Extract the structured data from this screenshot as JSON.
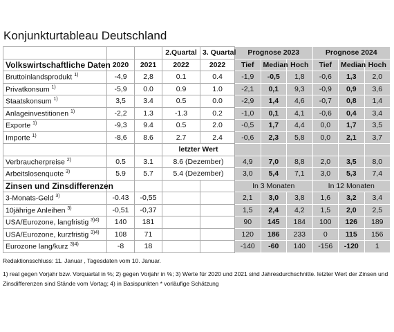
{
  "header": {
    "title": "Konjunkturtableau Deutschland"
  },
  "table": {
    "group_headers": {
      "q2": "2.Quartal",
      "q3": "3. Quartal",
      "p2023": "Prognose 2023",
      "p2024": "Prognose 2024"
    },
    "section1": "Volkswirtschaftliche Daten",
    "columns": [
      "2020",
      "2021",
      "2022",
      "2022",
      "Tief",
      "Median",
      "Hoch",
      "Tief",
      "Median",
      "Hoch"
    ],
    "rows": [
      {
        "label": "Bruttoinlandsprodukt",
        "note": "1)",
        "values": [
          "-4,9",
          "2,8",
          "0.1",
          "0.4",
          "-1,9",
          "-0,5",
          "1,8",
          "-0,6",
          "1,3",
          "2,0"
        ]
      },
      {
        "label": "Privatkonsum",
        "note": "1)",
        "values": [
          "-5,9",
          "0.0",
          "0.9",
          "1.0",
          "-2,1",
          "0,1",
          "9,3",
          "-0,9",
          "0,9",
          "3,6"
        ]
      },
      {
        "label": "Staatskonsum",
        "note": "1)",
        "values": [
          "3,5",
          "3.4",
          "0.5",
          "0.0",
          "-2,9",
          "1,4",
          "4,6",
          "-0,7",
          "0,8",
          "1,4"
        ]
      },
      {
        "label": "Anlageinvestitionen",
        "note": "1)",
        "values": [
          "-2,2",
          "1.3",
          "-1.3",
          "0.2",
          "-1,0",
          "0,1",
          "4,1",
          "-0,6",
          "0,4",
          "3,4"
        ]
      },
      {
        "label": "Exporte",
        "note": "1)",
        "values": [
          "-9,3",
          "9.4",
          "0.5",
          "2.0",
          "-0,5",
          "1,7",
          "4,4",
          "0,0",
          "1,7",
          "3,5"
        ]
      },
      {
        "label": "Importe",
        "note": "1)",
        "values": [
          "-8,6",
          "8.6",
          "2.7",
          "2.4",
          "-0,6",
          "2,3",
          "5,8",
          "0,0",
          "2,1",
          "3,7"
        ]
      }
    ],
    "last_value_label": "letzter Wert",
    "rows2": [
      {
        "label": "Verbraucherpreise",
        "note": "2)",
        "values": [
          "0.5",
          "3.1",
          "8.6 (Dezember)",
          "4,9",
          "7,0",
          "8,8",
          "2,0",
          "3,5",
          "8,0"
        ]
      },
      {
        "label": "Arbeitslosenquote",
        "note": "3)",
        "values": [
          "5.9",
          "5.7",
          "5.4 (Dezember)",
          "3,0",
          "5,4",
          "7,1",
          "3,0",
          "5,3",
          "7,4"
        ]
      }
    ],
    "section2": "Zinsen und Zinsdifferenzen",
    "horizon_3": "In 3 Monaten",
    "horizon_12": "In 12 Monaten",
    "rows3": [
      {
        "label": "3-Monats-Geld",
        "note": "3)",
        "values": [
          "-0.43",
          "-0,55",
          "2,1",
          "3,0",
          "3,8",
          "1,6",
          "3,2",
          "3,4"
        ]
      },
      {
        "label": "10jährige Anleihen",
        "note": "3)",
        "values": [
          "-0,51",
          "-0,37",
          "1,5",
          "2,4",
          "4,2",
          "1,5",
          "2,0",
          "2,5"
        ]
      },
      {
        "label": "USA/Eurozone, langfristig",
        "note": "3)4)",
        "values": [
          "140",
          "181",
          "90",
          "145",
          "184",
          "100",
          "126",
          "189"
        ]
      },
      {
        "label": "USA/Eurozone, kurzfristig",
        "note": "3)4)",
        "values": [
          "108",
          "71",
          "120",
          "186",
          "233",
          "0",
          "115",
          "156"
        ]
      },
      {
        "label": "Eurozone lang/kurz",
        "note": "3)4)",
        "values": [
          "-8",
          "18",
          "-140",
          "-60",
          "140",
          "-156",
          "-120",
          "1"
        ]
      }
    ]
  },
  "footer": {
    "deadline": "Redaktionsschluss: 11. Januar , Tagesdaten vom 10. Januar.",
    "notes": "1) real gegen Vorjahr bzw. Vorquartal in %; 2) gegen Vorjahr in %; 3) Werte für 2020 und 2021 sind Jahresdurchschnitte. letzter Wert der Zinsen und Zinsdifferenzen sind Stände vom Vortag; 4) in Basispunkten * vorläufige Schätzung"
  }
}
